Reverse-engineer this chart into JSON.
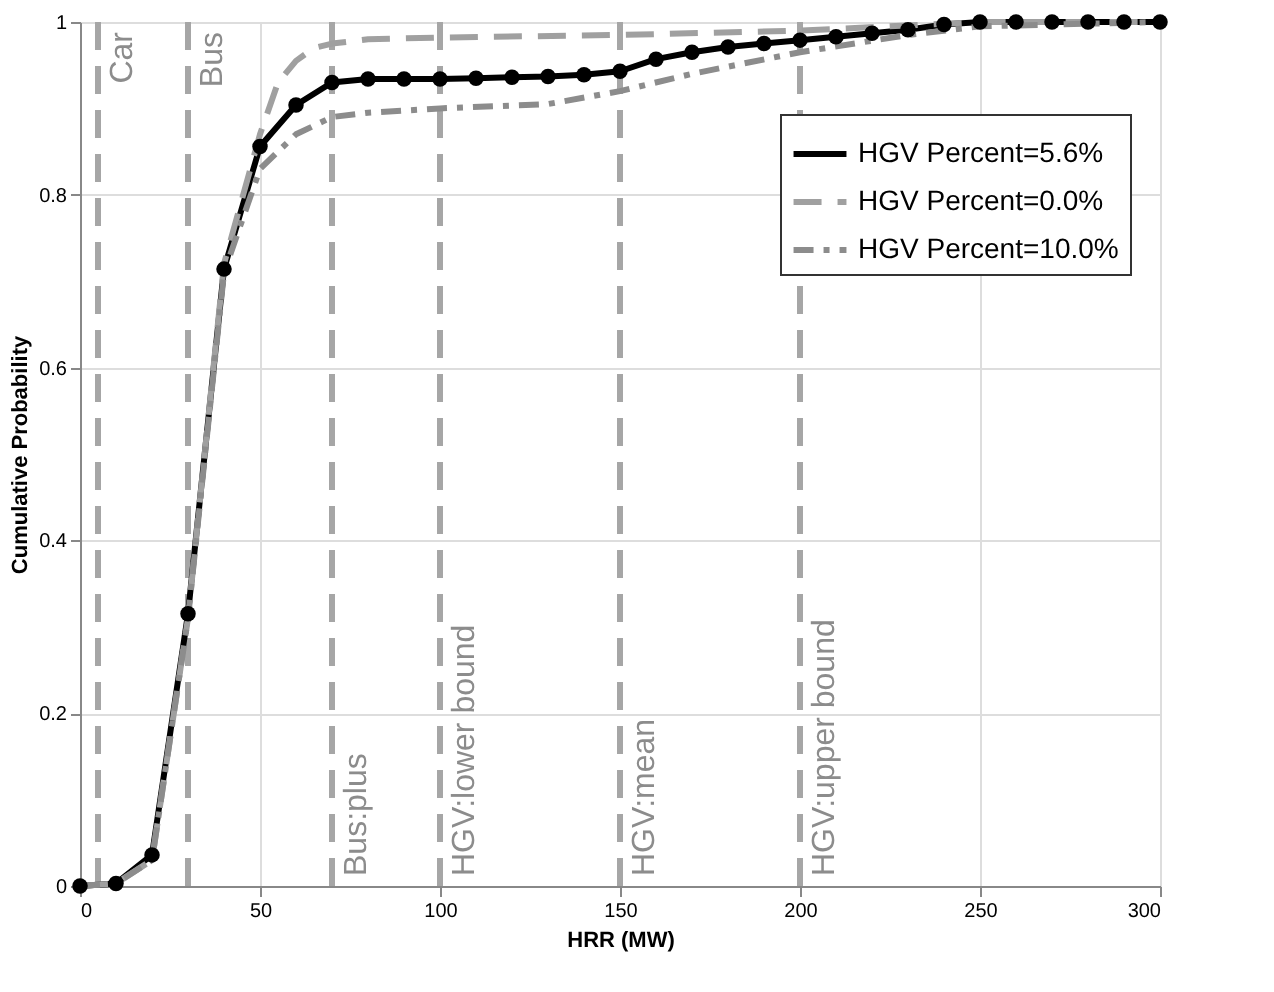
{
  "chart_data": {
    "type": "line",
    "xlabel": "HRR (MW)",
    "ylabel": "Cumulative Probability",
    "xlim": [
      0,
      300
    ],
    "xticks": [
      0,
      50,
      100,
      150,
      200,
      250,
      300
    ],
    "ylim": [
      0,
      1
    ],
    "yticks": [
      0,
      0.2,
      0.4,
      0.6,
      0.8,
      1
    ],
    "grid": true,
    "legend": "top right",
    "series": [
      {
        "name": "HGV Percent=5.6%",
        "color": "#000000",
        "marker": "circle",
        "line_style": "solid",
        "x": [
          0,
          10,
          20,
          30,
          40,
          50,
          60,
          70,
          80,
          90,
          100,
          110,
          120,
          130,
          140,
          150,
          160,
          170,
          180,
          190,
          200,
          210,
          220,
          230,
          240,
          250,
          260,
          270,
          280,
          290,
          300
        ],
        "values": [
          0,
          0.003,
          0.036,
          0.315,
          0.714,
          0.856,
          0.904,
          0.93,
          0.934,
          0.934,
          0.934,
          0.935,
          0.936,
          0.937,
          0.939,
          0.943,
          0.957,
          0.965,
          0.971,
          0.975,
          0.979,
          0.983,
          0.987,
          0.991,
          0.997,
          1,
          1,
          1,
          1,
          1,
          1
        ]
      },
      {
        "name": "HGV Percent=0.0%",
        "color": "#a0a0a0",
        "marker": "none",
        "line_style": "dashed",
        "x": [
          0,
          10,
          20,
          30,
          40,
          50,
          55,
          60,
          65,
          70,
          80,
          100,
          150,
          200,
          250,
          300
        ],
        "values": [
          0,
          0.003,
          0.03,
          0.31,
          0.72,
          0.87,
          0.93,
          0.955,
          0.97,
          0.975,
          0.98,
          0.982,
          0.985,
          0.99,
          1,
          1
        ]
      },
      {
        "name": "HGV Percent=10.0%",
        "color": "#8c8c8c",
        "marker": "none",
        "line_style": "dashdot",
        "x": [
          0,
          10,
          20,
          30,
          40,
          50,
          60,
          70,
          80,
          100,
          130,
          150,
          170,
          200,
          230,
          250,
          300
        ],
        "values": [
          0,
          0.003,
          0.03,
          0.31,
          0.71,
          0.83,
          0.87,
          0.89,
          0.895,
          0.9,
          0.905,
          0.92,
          0.94,
          0.965,
          0.985,
          0.995,
          1
        ]
      }
    ],
    "ref_lines": [
      {
        "axis": "x",
        "value": 5,
        "label": "Car",
        "color": "#a6a6a6",
        "line_style": "dashed"
      },
      {
        "axis": "x",
        "value": 30,
        "label": "Bus",
        "color": "#a6a6a6",
        "line_style": "dashed"
      },
      {
        "axis": "x",
        "value": 70,
        "label": "Bus:plus",
        "color": "#a6a6a6",
        "line_style": "dashed"
      },
      {
        "axis": "x",
        "value": 100,
        "label": "HGV:lower bound",
        "color": "#a6a6a6",
        "line_style": "dashed"
      },
      {
        "axis": "x",
        "value": 150,
        "label": "HGV:mean",
        "color": "#a6a6a6",
        "line_style": "dashed"
      },
      {
        "axis": "x",
        "value": 200,
        "label": "HGV:upper bound",
        "color": "#a6a6a6",
        "line_style": "dashed"
      }
    ]
  }
}
